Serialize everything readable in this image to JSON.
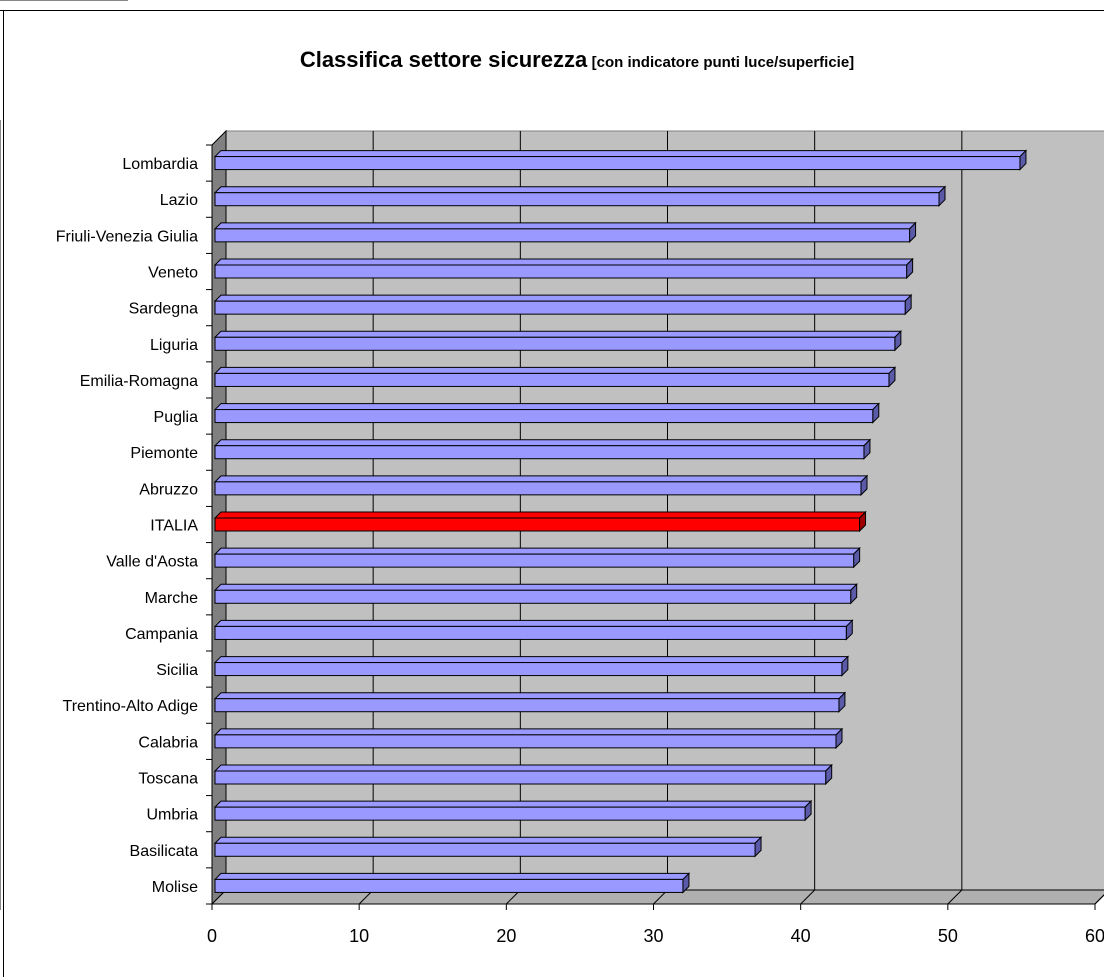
{
  "chart_data": {
    "type": "bar",
    "orientation": "horizontal",
    "title": "Classifica settore sicurezza",
    "subtitle": "[con indicatore punti luce/superficie]",
    "categories": [
      "Lombardia",
      "Lazio",
      "Friuli-Venezia Giulia",
      "Veneto",
      "Sardegna",
      "Liguria",
      "Emilia-Romagna",
      "Puglia",
      "Piemonte",
      "Abruzzo",
      "ITALIA",
      "Valle d'Aosta",
      "Marche",
      "Campania",
      "Sicilia",
      "Trentino-Alto Adige",
      "Calabria",
      "Toscana",
      "Umbria",
      "Basilicata",
      "Molise"
    ],
    "values": [
      54.9,
      49.4,
      47.4,
      47.2,
      47.1,
      46.4,
      46.0,
      44.9,
      44.3,
      44.1,
      44.0,
      43.6,
      43.4,
      43.1,
      42.8,
      42.6,
      42.4,
      41.7,
      40.3,
      36.9,
      32.0
    ],
    "highlight": "ITALIA",
    "xlim": [
      0,
      60
    ],
    "x_ticks": [
      "0",
      "10",
      "20",
      "30",
      "40",
      "50",
      "60"
    ],
    "grid": true,
    "colors": {
      "bar": "#9999ff",
      "bar_side": "#5a5aa8",
      "highlight": "#ff0000",
      "highlight_side": "#a00000",
      "plot_bg": "#c0c0c0",
      "plot_wall": "#808080"
    }
  }
}
